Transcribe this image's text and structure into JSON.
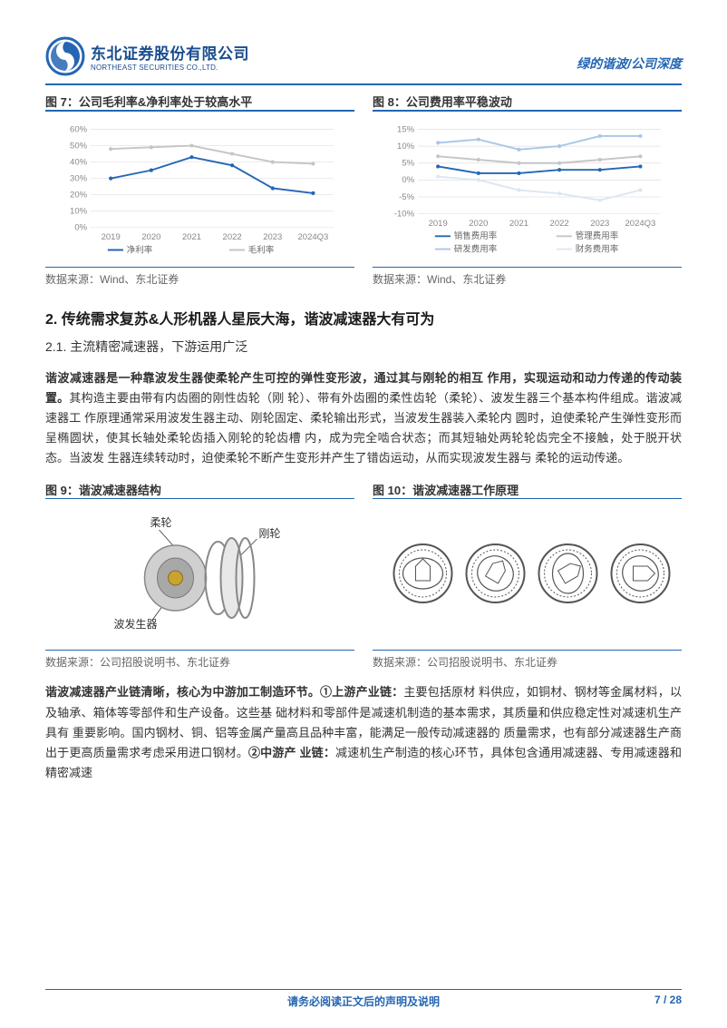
{
  "header": {
    "logo_cn": "东北证券股份有限公司",
    "logo_en": "NORTHEAST SECURITIES CO.,LTD.",
    "right_text": "绿的谐波/公司深度"
  },
  "fig7": {
    "title": "图 7：公司毛利率&净利率处于较高水平",
    "type": "line",
    "xcats": [
      "2019",
      "2020",
      "2021",
      "2022",
      "2023",
      "2024Q3"
    ],
    "ylabels": [
      "0%",
      "10%",
      "20%",
      "30%",
      "40%",
      "50%",
      "60%"
    ],
    "ymin": 0,
    "ymax": 60,
    "ystep": 10,
    "series": [
      {
        "name": "净利率",
        "color": "#2466b3",
        "values": [
          30,
          35,
          43,
          38,
          24,
          21
        ]
      },
      {
        "name": "毛利率",
        "color": "#c5c5c5",
        "values": [
          48,
          49,
          50,
          45,
          40,
          39
        ]
      }
    ],
    "source": "数据来源：Wind、东北证券"
  },
  "fig8": {
    "title": "图 8：公司费用率平稳波动",
    "type": "line",
    "xcats": [
      "2019",
      "2020",
      "2021",
      "2022",
      "2023",
      "2024Q3"
    ],
    "ylabels": [
      "-10%",
      "-5%",
      "0%",
      "5%",
      "10%",
      "15%"
    ],
    "ymin": -10,
    "ymax": 15,
    "ystep": 5,
    "series": [
      {
        "name": "销售费用率",
        "color": "#2466b3",
        "values": [
          4,
          2,
          2,
          3,
          3,
          4
        ]
      },
      {
        "name": "管理费用率",
        "color": "#c5c5c5",
        "values": [
          7,
          6,
          5,
          5,
          6,
          7
        ]
      },
      {
        "name": "研发费用率",
        "color": "#a9c6e8",
        "values": [
          11,
          12,
          9,
          10,
          13,
          13
        ]
      },
      {
        "name": "财务费用率",
        "color": "#dde6f2",
        "values": [
          1,
          0,
          -3,
          -4,
          -6,
          -3
        ]
      }
    ],
    "source": "数据来源：Wind、东北证券"
  },
  "section2": {
    "heading": "2.   传统需求复苏&人形机器人星辰大海，谐波减速器大有可为",
    "sub": "2.1.   主流精密减速器，下游运用广泛",
    "para1_bold": "谐波减速器是一种靠波发生器使柔轮产生可控的弹性变形波，通过其与刚轮的相互\n作用，实现运动和动力传递的传动装置。",
    "para1_rest": "其构造主要由带有内齿圈的刚性齿轮（刚\n轮）、带有外齿圈的柔性齿轮（柔轮）、波发生器三个基本构件组成。谐波减速器工\n作原理通常采用波发生器主动、刚轮固定、柔轮输出形式，当波发生器装入柔轮内\n圆时，迫使柔轮产生弹性变形而呈椭圆状，使其长轴处柔轮齿插入刚轮的轮齿槽\n内，成为完全啮合状态；而其短轴处两轮轮齿完全不接触，处于脱开状态。当波发\n生器连续转动时，迫使柔轮不断产生变形并产生了错齿运动，从而实现波发生器与\n柔轮的运动传递。"
  },
  "fig9": {
    "title": "图 9：谐波减速器结构",
    "labels": {
      "rouwheel": "柔轮",
      "gangwheel": "刚轮",
      "wave": "波发生器"
    },
    "source": "数据来源：公司招股说明书、东北证券"
  },
  "fig10": {
    "title": "图 10：谐波减速器工作原理",
    "source": "数据来源：公司招股说明书、东北证券"
  },
  "para2_bold1": "谐波减速器产业链清晰，核心为中游加工制造环节。①上游产业链：",
  "para2_rest1": "主要包括原材\n料供应，如铜材、钢材等金属材料，以及轴承、箱体等零部件和生产设备。这些基\n础材料和零部件是减速机制造的基本需求，其质量和供应稳定性对减速机生产具有\n重要影响。国内钢材、铜、铝等金属产量高且品种丰富，能满足一般传动减速器的\n质量需求，也有部分减速器生产商出于更高质量需求考虑采用进口钢材。",
  "para2_bold2": "②中游产\n业链：",
  "para2_rest2": "减速机生产制造的核心环节，具体包含通用减速器、专用减速器和精密减速",
  "footer": {
    "center": "请务必阅读正文后的声明及说明",
    "page": "7 / 28"
  },
  "colors": {
    "brand": "#2466b3",
    "grid": "#e0e0e0",
    "text": "#333333"
  }
}
